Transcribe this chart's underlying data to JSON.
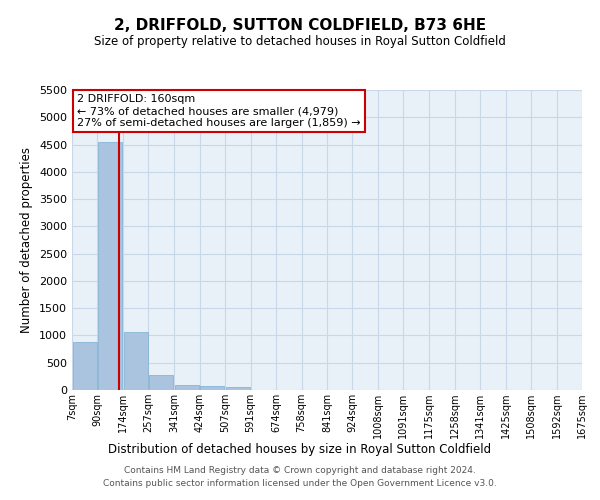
{
  "title": "2, DRIFFOLD, SUTTON COLDFIELD, B73 6HE",
  "subtitle": "Size of property relative to detached houses in Royal Sutton Coldfield",
  "xlabel": "Distribution of detached houses by size in Royal Sutton Coldfield",
  "ylabel": "Number of detached properties",
  "footer_line1": "Contains HM Land Registry data © Crown copyright and database right 2024.",
  "footer_line2": "Contains public sector information licensed under the Open Government Licence v3.0.",
  "annotation_line1": "2 DRIFFOLD: 160sqm",
  "annotation_line2": "← 73% of detached houses are smaller (4,979)",
  "annotation_line3": "27% of semi-detached houses are larger (1,859) →",
  "property_size": 160,
  "bin_edges": [
    7,
    90,
    174,
    257,
    341,
    424,
    507,
    591,
    674,
    758,
    841,
    924,
    1008,
    1091,
    1175,
    1258,
    1341,
    1425,
    1508,
    1592,
    1675
  ],
  "bar_heights": [
    880,
    4550,
    1060,
    275,
    95,
    80,
    55,
    0,
    0,
    0,
    0,
    0,
    0,
    0,
    0,
    0,
    0,
    0,
    0,
    0
  ],
  "bar_color": "#aac4e0",
  "bar_edgecolor": "#7aaed0",
  "redline_color": "#cc0000",
  "grid_color": "#c8d8e8",
  "bg_color": "#e8f0f8",
  "ylim": [
    0,
    5500
  ],
  "yticks": [
    0,
    500,
    1000,
    1500,
    2000,
    2500,
    3000,
    3500,
    4000,
    4500,
    5000,
    5500
  ]
}
